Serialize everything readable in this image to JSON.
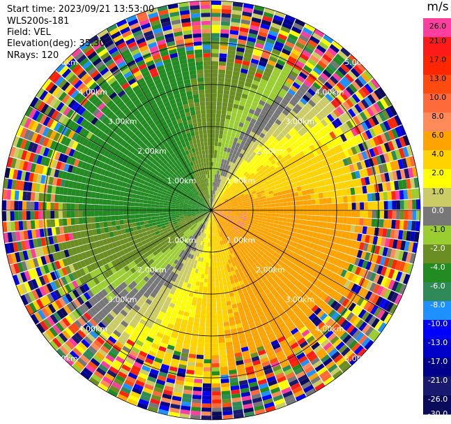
{
  "header": {
    "start_time": "Start time: 2023/09/21 13:53:00",
    "instrument": "WLS200s-181",
    "field": "Field: VEL",
    "elevation": "Elevation(deg): 35.30",
    "nrays": "NRays: 120"
  },
  "colorbar": {
    "unit": "m/s",
    "ticks": [
      "26.0",
      "21.0",
      "17.0",
      "13.0",
      "10.0",
      "8.0",
      "6.0",
      "4.0",
      "2.0",
      "1.0",
      "0.0",
      "-1.0",
      "-2.0",
      "-4.0",
      "-6.0",
      "-8.0",
      "-10.0",
      "-13.0",
      "-17.0",
      "-21.0",
      "-26.0",
      "-30.0"
    ],
    "colors": [
      "#ff3fa0",
      "#ff1a1a",
      "#ff2600",
      "#ff4a10",
      "#ff6a3a",
      "#ff8a5a",
      "#ffa300",
      "#ffd200",
      "#ffff00",
      "#cccc66",
      "#777777",
      "#9acd32",
      "#6b8e23",
      "#228b22",
      "#2e8b57",
      "#1e90ff",
      "#0000ff",
      "#0000c8",
      "#00008b",
      "#191970",
      "#0b0b5c"
    ]
  },
  "chart_data": {
    "type": "heatmap",
    "title": "",
    "projection": "polar PPI",
    "field": "VEL",
    "units": "m/s",
    "nrays": 120,
    "range_rings_km": [
      1.0,
      2.0,
      3.0,
      4.0,
      5.0
    ],
    "range_ring_labels": [
      "1.00km",
      "2.00km",
      "3.00km",
      "4.00km",
      "5.00km"
    ],
    "max_range_km": 5.0,
    "spokes_deg": [
      0,
      30,
      60,
      90,
      120,
      150,
      180,
      210,
      240,
      270,
      300,
      330
    ],
    "vmin": -30,
    "vmax": 26,
    "pattern": {
      "description_values": "positive velocities (orange/red) to the east, negative (green) to the west, noisy beyond ~3.5 km",
      "noise_start_km": 3.4
    }
  }
}
